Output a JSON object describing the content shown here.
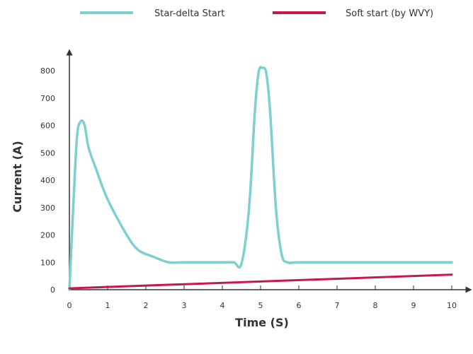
{
  "chart_data": {
    "type": "line",
    "xlabel": "Time (S)",
    "ylabel": "Current (A)",
    "xlim": [
      0,
      10
    ],
    "ylim": [
      0,
      800
    ],
    "xticks": [
      0,
      1,
      2,
      3,
      4,
      5,
      6,
      7,
      8,
      9,
      10
    ],
    "yticks": [
      0,
      100,
      200,
      300,
      400,
      500,
      600,
      700,
      800
    ],
    "grid": false,
    "legend_position": "top",
    "series": [
      {
        "name": "Star-delta Start",
        "color": "#7ecfcf",
        "points": [
          [
            0,
            0
          ],
          [
            0.1,
            300
          ],
          [
            0.2,
            560
          ],
          [
            0.3,
            615
          ],
          [
            0.4,
            600
          ],
          [
            0.5,
            520
          ],
          [
            0.7,
            440
          ],
          [
            1.0,
            330
          ],
          [
            1.5,
            200
          ],
          [
            1.8,
            145
          ],
          [
            2.2,
            120
          ],
          [
            2.6,
            100
          ],
          [
            3.0,
            100
          ],
          [
            4.0,
            100
          ],
          [
            4.3,
            100
          ],
          [
            4.5,
            95
          ],
          [
            4.7,
            300
          ],
          [
            4.85,
            650
          ],
          [
            4.95,
            795
          ],
          [
            5.05,
            810
          ],
          [
            5.15,
            790
          ],
          [
            5.25,
            650
          ],
          [
            5.4,
            300
          ],
          [
            5.55,
            130
          ],
          [
            5.7,
            100
          ],
          [
            6.0,
            100
          ],
          [
            7.0,
            100
          ],
          [
            8.0,
            100
          ],
          [
            9.0,
            100
          ],
          [
            10.0,
            100
          ]
        ]
      },
      {
        "name": "Soft start (by WVY)",
        "color": "#c8184a",
        "points": [
          [
            0,
            5
          ],
          [
            10,
            55
          ]
        ]
      }
    ]
  }
}
